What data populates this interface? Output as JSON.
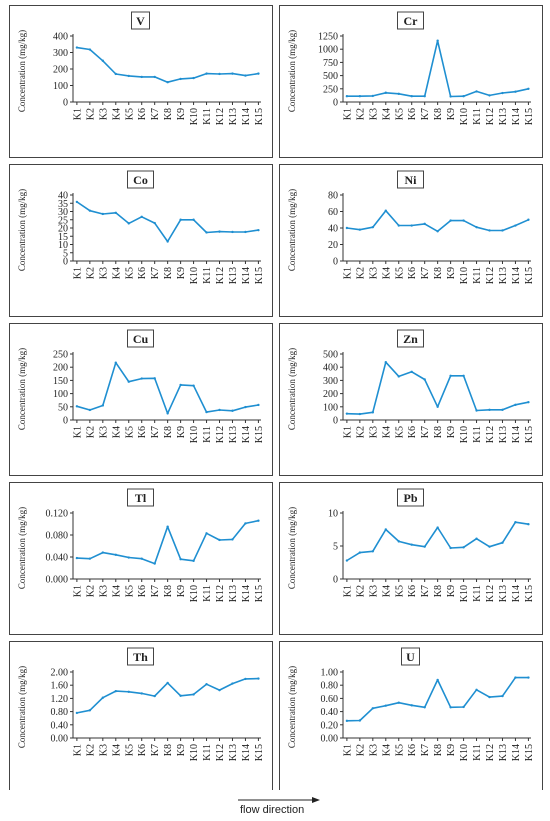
{
  "figure": {
    "flow_label": "flow direction"
  },
  "chart_data": [
    {
      "type": "line",
      "title": "V",
      "ylabel": "Concentration (mg/kg)",
      "x": [
        "K1",
        "K2",
        "K3",
        "K4",
        "K5",
        "K6",
        "K7",
        "K8",
        "K9",
        "K10",
        "K11",
        "K12",
        "K13",
        "K14",
        "K15"
      ],
      "series": [
        {
          "values": [
            330,
            318,
            250,
            170,
            158,
            152,
            152,
            120,
            140,
            145,
            172,
            170,
            172,
            160,
            172
          ]
        }
      ],
      "yticks": [
        "0",
        "100",
        "200",
        "300",
        "400"
      ],
      "ylim": [
        0,
        400
      ],
      "color": "#1f8fd1"
    },
    {
      "type": "line",
      "title": "Cr",
      "ylabel": "Concentration (mg/kg)",
      "x": [
        "K1",
        "K2",
        "K3",
        "K4",
        "K5",
        "K6",
        "K7",
        "K8",
        "K9",
        "K10",
        "K11",
        "K12",
        "K13",
        "K14",
        "K15"
      ],
      "series": [
        {
          "values": [
            110,
            110,
            115,
            175,
            155,
            110,
            110,
            1160,
            105,
            110,
            200,
            125,
            170,
            195,
            250
          ]
        }
      ],
      "yticks": [
        "0",
        "250",
        "500",
        "750",
        "1000",
        "1250"
      ],
      "ylim": [
        0,
        1250
      ],
      "color": "#1f8fd1"
    },
    {
      "type": "line",
      "title": "Co",
      "ylabel": "Concentration (mg/kg)",
      "x": [
        "K1",
        "K2",
        "K3",
        "K4",
        "K5",
        "K6",
        "K7",
        "K8",
        "K9",
        "K10",
        "K11",
        "K12",
        "K13",
        "K14",
        "K15"
      ],
      "series": [
        {
          "values": [
            35.8,
            30.5,
            28.5,
            29.2,
            22.8,
            26.8,
            23,
            11.8,
            25,
            25,
            17.3,
            17.8,
            17.6,
            17.6,
            18.7
          ]
        }
      ],
      "yticks": [
        "0",
        "5",
        "10",
        "15",
        "20",
        "25",
        "30",
        "35",
        "40"
      ],
      "ylim": [
        0,
        40
      ],
      "color": "#1f8fd1"
    },
    {
      "type": "line",
      "title": "Ni",
      "ylabel": "Concentration (mg/kg)",
      "x": [
        "K1",
        "K2",
        "K3",
        "K4",
        "K5",
        "K6",
        "K7",
        "K8",
        "K9",
        "K10",
        "K11",
        "K12",
        "K13",
        "K14",
        "K15"
      ],
      "series": [
        {
          "values": [
            40,
            38,
            41,
            61,
            43,
            43,
            45,
            36,
            49,
            49,
            41,
            37,
            37,
            43,
            50
          ]
        }
      ],
      "yticks": [
        "0",
        "20",
        "40",
        "60",
        "80"
      ],
      "ylim": [
        0,
        80
      ],
      "color": "#1f8fd1"
    },
    {
      "type": "line",
      "title": "Cu",
      "ylabel": "Concentration (mg/kg)",
      "x": [
        "K1",
        "K2",
        "K3",
        "K4",
        "K5",
        "K6",
        "K7",
        "K8",
        "K9",
        "K10",
        "K11",
        "K12",
        "K13",
        "K14",
        "K15"
      ],
      "series": [
        {
          "values": [
            52,
            38,
            55,
            217,
            145,
            157,
            158,
            25,
            133,
            130,
            30,
            38,
            35,
            49,
            57
          ]
        }
      ],
      "yticks": [
        "0",
        "50",
        "100",
        "150",
        "200",
        "250"
      ],
      "ylim": [
        0,
        250
      ],
      "color": "#1f8fd1"
    },
    {
      "type": "line",
      "title": "Zn",
      "ylabel": "Concentration (mg/kg)",
      "x": [
        "K1",
        "K2",
        "K3",
        "K4",
        "K5",
        "K6",
        "K7",
        "K8",
        "K9",
        "K10",
        "K11",
        "K12",
        "K13",
        "K14",
        "K15"
      ],
      "series": [
        {
          "values": [
            48,
            45,
            58,
            438,
            330,
            365,
            307,
            100,
            335,
            335,
            72,
            77,
            77,
            115,
            135
          ]
        }
      ],
      "yticks": [
        "0",
        "100",
        "200",
        "300",
        "400",
        "500"
      ],
      "ylim": [
        0,
        500
      ],
      "color": "#1f8fd1"
    },
    {
      "type": "line",
      "title": "Tl",
      "ylabel": "Concentration (mg/kg)",
      "x": [
        "K1",
        "K2",
        "K3",
        "K4",
        "K5",
        "K6",
        "K7",
        "K8",
        "K9",
        "K10",
        "K11",
        "K12",
        "K13",
        "K14",
        "K15"
      ],
      "series": [
        {
          "values": [
            0.038,
            0.037,
            0.048,
            0.044,
            0.039,
            0.037,
            0.028,
            0.095,
            0.036,
            0.033,
            0.083,
            0.071,
            0.072,
            0.101,
            0.106
          ]
        }
      ],
      "yticks": [
        "0.000",
        "0.040",
        "0.080",
        "0.120"
      ],
      "ylim": [
        0,
        0.12
      ],
      "color": "#1f8fd1"
    },
    {
      "type": "line",
      "title": "Pb",
      "ylabel": "Concentration (mg/kg)",
      "x": [
        "K1",
        "K2",
        "K3",
        "K4",
        "K5",
        "K6",
        "K7",
        "K8",
        "K9",
        "K10",
        "K11",
        "K12",
        "K13",
        "K14",
        "K15"
      ],
      "series": [
        {
          "values": [
            2.8,
            4.0,
            4.2,
            7.5,
            5.7,
            5.2,
            4.9,
            7.8,
            4.7,
            4.8,
            6.1,
            4.9,
            5.5,
            8.6,
            8.3
          ]
        }
      ],
      "yticks": [
        "0",
        "5",
        "10"
      ],
      "ylim": [
        0,
        10
      ],
      "color": "#1f8fd1"
    },
    {
      "type": "line",
      "title": "Th",
      "ylabel": "Concentration (mg/kg)",
      "x": [
        "K1",
        "K2",
        "K3",
        "K4",
        "K5",
        "K6",
        "K7",
        "K8",
        "K9",
        "K10",
        "K11",
        "K12",
        "K13",
        "K14",
        "K15"
      ],
      "series": [
        {
          "values": [
            0.76,
            0.84,
            1.22,
            1.42,
            1.4,
            1.35,
            1.27,
            1.67,
            1.28,
            1.32,
            1.63,
            1.45,
            1.65,
            1.79,
            1.8
          ]
        }
      ],
      "yticks": [
        "0.00",
        "0.40",
        "0.80",
        "1.20",
        "1.60",
        "2.00"
      ],
      "ylim": [
        0,
        2.0
      ],
      "color": "#1f8fd1"
    },
    {
      "type": "line",
      "title": "U",
      "ylabel": "Concentration (mg/kg)",
      "x": [
        "K1",
        "K2",
        "K3",
        "K4",
        "K5",
        "K6",
        "K7",
        "K8",
        "K9",
        "K10",
        "K11",
        "K12",
        "K13",
        "K14",
        "K15"
      ],
      "series": [
        {
          "values": [
            0.26,
            0.265,
            0.45,
            0.49,
            0.535,
            0.495,
            0.465,
            0.88,
            0.465,
            0.47,
            0.73,
            0.62,
            0.635,
            0.915,
            0.915
          ]
        }
      ],
      "yticks": [
        "0.00",
        "0.20",
        "0.40",
        "0.60",
        "0.80",
        "1.00"
      ],
      "ylim": [
        0,
        1.0
      ],
      "color": "#1f8fd1"
    }
  ]
}
